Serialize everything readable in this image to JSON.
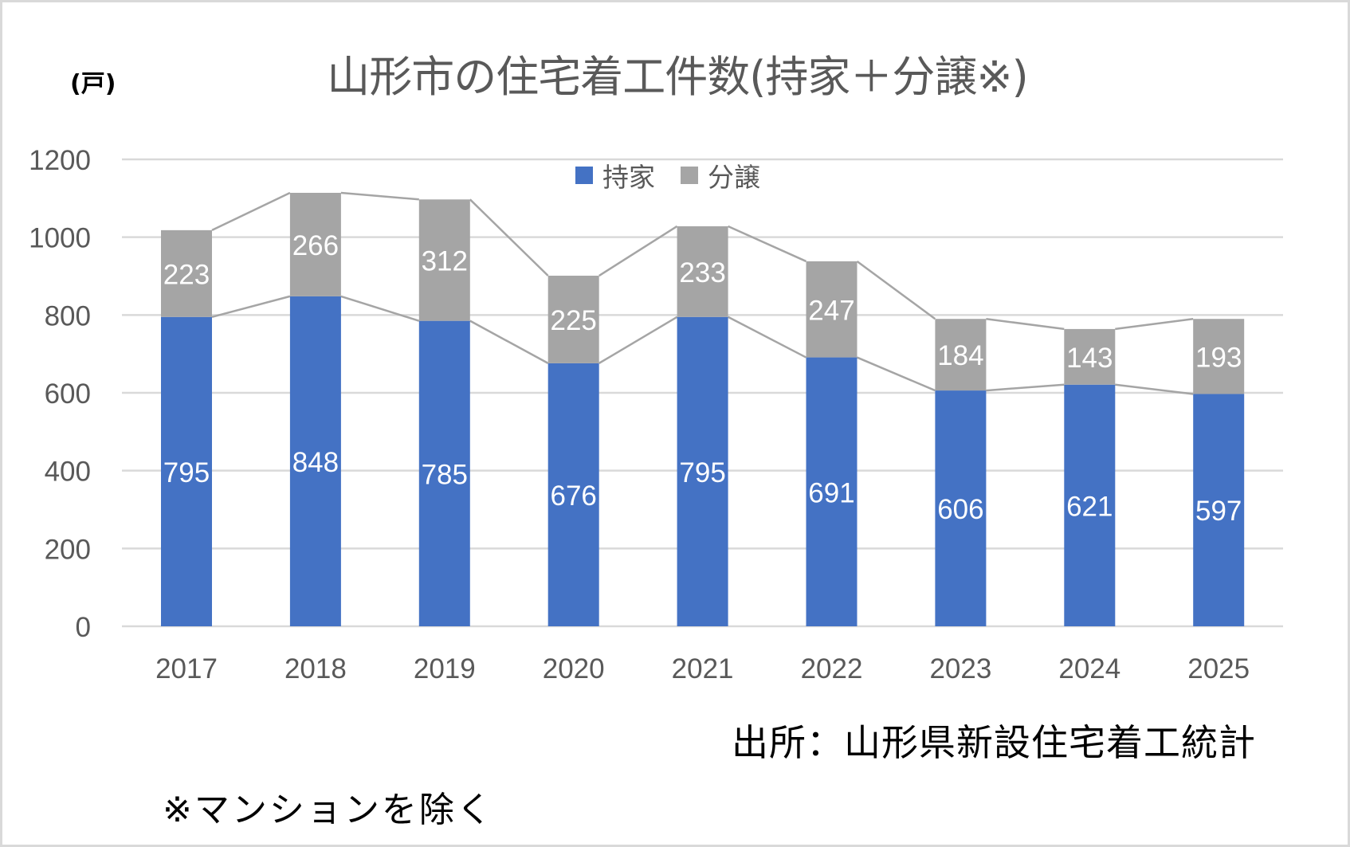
{
  "chart_data": {
    "type": "bar",
    "stacked": true,
    "title": "山形市の住宅着工件数(持家＋分譲※)",
    "unit_label": "(戸)",
    "xlabel": "",
    "ylabel": "(戸)",
    "categories": [
      "2017",
      "2018",
      "2019",
      "2020",
      "2021",
      "2022",
      "2023",
      "2024",
      "2025"
    ],
    "series": [
      {
        "name": "持家",
        "color": "#4472C4",
        "values": [
          795,
          848,
          785,
          676,
          795,
          691,
          606,
          621,
          597
        ]
      },
      {
        "name": "分譲",
        "color": "#A5A5A5",
        "values": [
          223,
          266,
          312,
          225,
          233,
          247,
          184,
          143,
          193
        ]
      }
    ],
    "ylim": [
      0,
      1200
    ],
    "yticks": [
      0,
      200,
      400,
      600,
      800,
      1000,
      1200
    ],
    "grid": true,
    "series_lines": true,
    "data_labels": true,
    "legend_position": "top",
    "colors": {
      "gridline": "#D9D9D9",
      "axis_text": "#595959",
      "series_line": "#A5A5A5",
      "label_text": "#FFFFFF"
    }
  },
  "footer": {
    "source": "出所：山形県新設住宅着工統計",
    "note": "※マンションを除く"
  }
}
